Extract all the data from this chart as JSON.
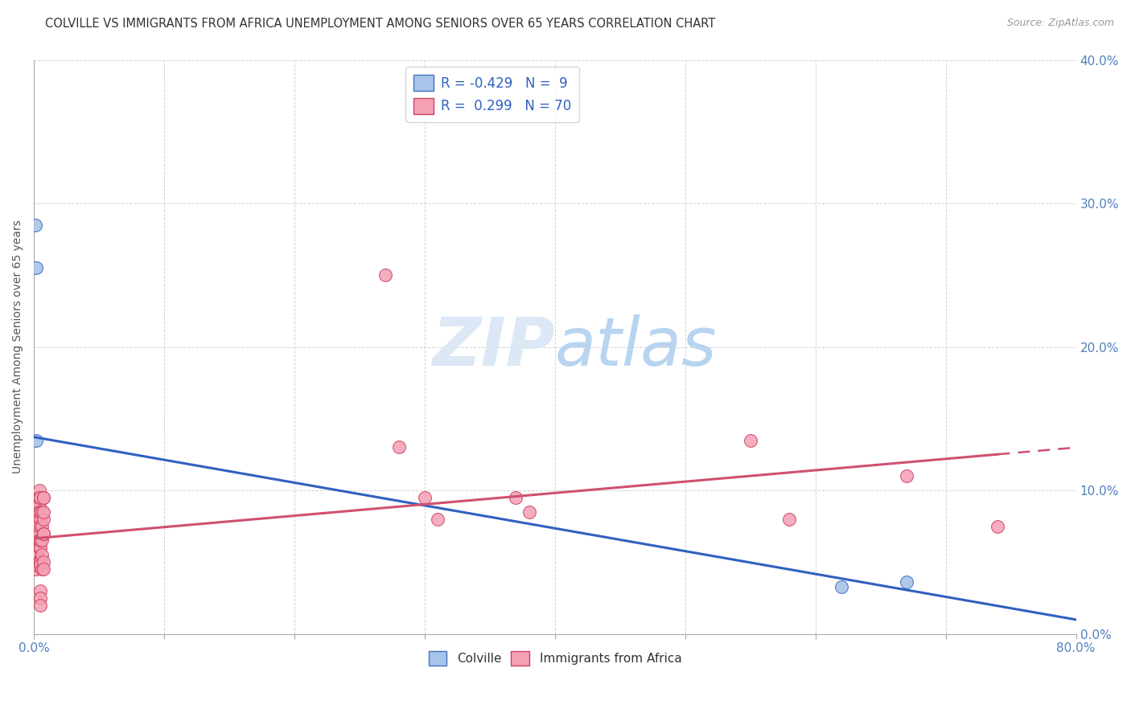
{
  "title": "COLVILLE VS IMMIGRANTS FROM AFRICA UNEMPLOYMENT AMONG SENIORS OVER 65 YEARS CORRELATION CHART",
  "source": "Source: ZipAtlas.com",
  "ylabel": "Unemployment Among Seniors over 65 years",
  "colville_R": -0.429,
  "colville_N": 9,
  "africa_R": 0.299,
  "africa_N": 70,
  "xlim": [
    0,
    0.8
  ],
  "ylim": [
    0,
    0.4
  ],
  "xtick_positions": [
    0.0,
    0.1,
    0.2,
    0.3,
    0.4,
    0.5,
    0.6,
    0.7,
    0.8
  ],
  "ytick_positions": [
    0.0,
    0.1,
    0.2,
    0.3,
    0.4
  ],
  "colville_fill": "#a8c4e8",
  "africa_fill": "#f4a0b5",
  "colville_edge": "#4070c0",
  "africa_edge": "#d04060",
  "line_blue": "#3060c0",
  "line_pink": "#d05070",
  "colville_points": [
    [
      0.001,
      0.285
    ],
    [
      0.002,
      0.255
    ],
    [
      0.002,
      0.135
    ],
    [
      0.002,
      0.075
    ],
    [
      0.002,
      0.072
    ],
    [
      0.002,
      0.068
    ],
    [
      0.003,
      0.068
    ],
    [
      0.62,
      0.033
    ],
    [
      0.67,
      0.036
    ]
  ],
  "africa_points": [
    [
      0.001,
      0.068
    ],
    [
      0.001,
      0.065
    ],
    [
      0.001,
      0.062
    ],
    [
      0.001,
      0.06
    ],
    [
      0.001,
      0.058
    ],
    [
      0.001,
      0.055
    ],
    [
      0.001,
      0.052
    ],
    [
      0.001,
      0.05
    ],
    [
      0.002,
      0.075
    ],
    [
      0.002,
      0.07
    ],
    [
      0.002,
      0.065
    ],
    [
      0.002,
      0.062
    ],
    [
      0.002,
      0.058
    ],
    [
      0.002,
      0.055
    ],
    [
      0.002,
      0.052
    ],
    [
      0.002,
      0.05
    ],
    [
      0.002,
      0.048
    ],
    [
      0.002,
      0.045
    ],
    [
      0.003,
      0.09
    ],
    [
      0.003,
      0.085
    ],
    [
      0.003,
      0.08
    ],
    [
      0.003,
      0.075
    ],
    [
      0.003,
      0.068
    ],
    [
      0.003,
      0.06
    ],
    [
      0.003,
      0.055
    ],
    [
      0.003,
      0.05
    ],
    [
      0.003,
      0.048
    ],
    [
      0.004,
      0.09
    ],
    [
      0.004,
      0.085
    ],
    [
      0.004,
      0.07
    ],
    [
      0.004,
      0.065
    ],
    [
      0.004,
      0.06
    ],
    [
      0.004,
      0.05
    ],
    [
      0.004,
      0.1
    ],
    [
      0.004,
      0.095
    ],
    [
      0.005,
      0.08
    ],
    [
      0.005,
      0.065
    ],
    [
      0.005,
      0.06
    ],
    [
      0.005,
      0.05
    ],
    [
      0.005,
      0.095
    ],
    [
      0.005,
      0.085
    ],
    [
      0.005,
      0.075
    ],
    [
      0.005,
      0.065
    ],
    [
      0.005,
      0.048
    ],
    [
      0.005,
      0.03
    ],
    [
      0.005,
      0.025
    ],
    [
      0.005,
      0.02
    ],
    [
      0.006,
      0.085
    ],
    [
      0.006,
      0.075
    ],
    [
      0.006,
      0.065
    ],
    [
      0.006,
      0.055
    ],
    [
      0.006,
      0.045
    ],
    [
      0.007,
      0.095
    ],
    [
      0.007,
      0.08
    ],
    [
      0.007,
      0.07
    ],
    [
      0.007,
      0.085
    ],
    [
      0.007,
      0.05
    ],
    [
      0.007,
      0.095
    ],
    [
      0.007,
      0.07
    ],
    [
      0.007,
      0.045
    ],
    [
      0.27,
      0.25
    ],
    [
      0.28,
      0.13
    ],
    [
      0.3,
      0.095
    ],
    [
      0.31,
      0.08
    ],
    [
      0.37,
      0.095
    ],
    [
      0.38,
      0.085
    ],
    [
      0.55,
      0.135
    ],
    [
      0.58,
      0.08
    ],
    [
      0.67,
      0.11
    ],
    [
      0.74,
      0.075
    ]
  ],
  "background_color": "#ffffff",
  "grid_color": "#c8c8c8",
  "tick_label_color": "#5080c0",
  "watermark_color": "#dce8f5",
  "right_ytick_color": "#5080c0"
}
